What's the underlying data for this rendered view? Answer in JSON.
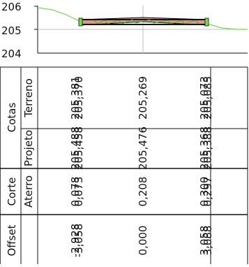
{
  "profile": {
    "y_ticks": [
      "206",
      "205",
      "204"
    ],
    "colors": {
      "terrain": "#6fe04a",
      "slab_fill": "#f08a8a",
      "slab_edge": "#111111",
      "grid": "#bfbfbf",
      "frame": "#111111"
    }
  },
  "table": {
    "group_labels": {
      "cotas": "Cotas",
      "corte_aterro": "Corte"
    },
    "row_labels": {
      "terreno": "Terreno",
      "projeto": "Projeto",
      "aterro": "Aterro",
      "offset": "Offset"
    },
    "columns": [
      {
        "terreno": [
          "205,370",
          "205,381"
        ],
        "projeto": [
          "205,458",
          "205,488"
        ],
        "aterro": [
          "0,073",
          "0,078"
        ],
        "offset": [
          "-3,058",
          "-2,928"
        ]
      },
      {
        "terreno": [
          "205,269"
        ],
        "projeto": [
          "205,476"
        ],
        "aterro": [
          "0,208"
        ],
        "offset": [
          "0,000"
        ]
      },
      {
        "terreno": [
          "205,073",
          "205,085"
        ],
        "projeto": [
          "205,368",
          "205,388"
        ],
        "aterro": [
          "0,300",
          "0,297"
        ],
        "offset": [
          "3,058",
          "3,088"
        ]
      }
    ]
  }
}
